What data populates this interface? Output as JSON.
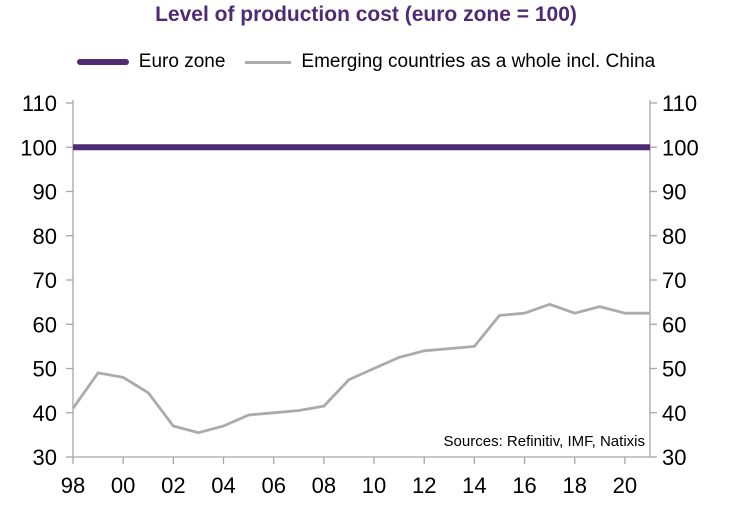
{
  "title": "Level of production cost (euro zone = 100)",
  "legend": [
    {
      "label": "Euro zone"
    },
    {
      "label": "Emerging countries as a whole incl. China"
    }
  ],
  "source_note": "Sources: Refinitiv, IMF, Natixis",
  "colors": {
    "title": "#4F2B76",
    "euro_zone_line": "#4F2B76",
    "emerging_line": "#ABABAB",
    "axis": "#A6A6A6",
    "tick_labels": "#000000"
  },
  "chart_data": {
    "type": "line",
    "title": "Level of production cost (euro zone = 100)",
    "x": [
      1998,
      1999,
      2000,
      2001,
      2002,
      2003,
      2004,
      2005,
      2006,
      2007,
      2008,
      2009,
      2010,
      2011,
      2012,
      2013,
      2014,
      2015,
      2016,
      2017,
      2018,
      2019,
      2020,
      2021
    ],
    "x_tick_years": [
      1998,
      2000,
      2002,
      2004,
      2006,
      2008,
      2010,
      2012,
      2014,
      2016,
      2018,
      2020
    ],
    "x_tick_labels": [
      "98",
      "00",
      "02",
      "04",
      "06",
      "08",
      "10",
      "12",
      "14",
      "16",
      "18",
      "20"
    ],
    "series": [
      {
        "name": "Euro zone",
        "color_key": "euro_zone_line",
        "values": [
          100,
          100,
          100,
          100,
          100,
          100,
          100,
          100,
          100,
          100,
          100,
          100,
          100,
          100,
          100,
          100,
          100,
          100,
          100,
          100,
          100,
          100,
          100,
          100
        ]
      },
      {
        "name": "Emerging countries as a whole incl. China",
        "color_key": "emerging_line",
        "values": [
          41,
          49,
          48,
          44.5,
          37,
          35.5,
          37,
          39.5,
          40,
          40.5,
          41.5,
          47.5,
          50,
          52.5,
          54,
          54.5,
          55,
          62,
          62.5,
          64.5,
          62.5,
          64,
          62.5,
          62.5
        ]
      }
    ],
    "ylim": [
      30,
      110
    ],
    "y_ticks": [
      30,
      40,
      50,
      60,
      70,
      80,
      90,
      100,
      110
    ],
    "y_axis_sides": "both",
    "grid": false,
    "legend_position": "top",
    "xlabel": "",
    "ylabel": ""
  }
}
